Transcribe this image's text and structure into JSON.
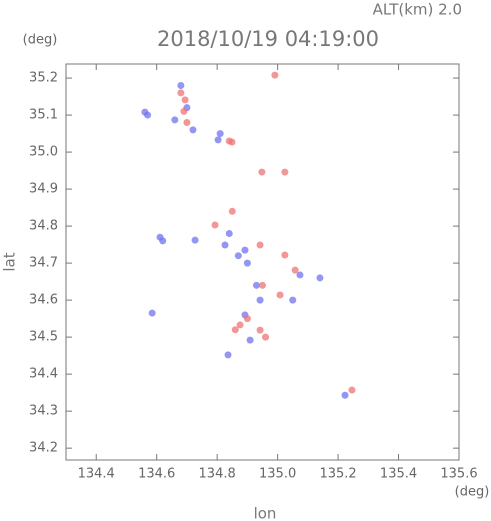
{
  "chart_data": {
    "type": "scatter",
    "title": "2018/10/19 04:19:00",
    "subtitle": "ALT(km) 2.0",
    "x_label": "lon",
    "y_label": "lat",
    "x_unit": "(deg)",
    "y_unit": "(deg)",
    "xlim": [
      134.3,
      135.6
    ],
    "ylim": [
      34.168,
      35.238
    ],
    "xticks": [
      134.4,
      134.6,
      134.8,
      {
        "value": 135,
        "label": "135.0"
      },
      135.2,
      135.4,
      135.6
    ],
    "yticks": [
      34.2,
      34.3,
      34.4,
      34.5,
      34.6,
      34.7,
      34.8,
      34.9,
      {
        "value": 35,
        "label": "35.0"
      },
      35.1,
      35.2
    ],
    "series": [
      {
        "color": "#6f73ee",
        "x": [
          134.561,
          134.57,
          134.68,
          134.7,
          134.66,
          134.803,
          134.81,
          134.611,
          134.62,
          134.727,
          134.826,
          134.84,
          134.892,
          134.9,
          135.074,
          135.14,
          134.942,
          134.892,
          134.909,
          134.836,
          134.585,
          135.223,
          134.72,
          134.87,
          134.93,
          135.05
        ],
        "y": [
          35.108,
          35.1,
          35.18,
          35.12,
          35.087,
          35.033,
          35.05,
          34.77,
          34.76,
          34.762,
          34.749,
          34.78,
          34.735,
          34.7,
          34.668,
          34.66,
          34.6,
          34.56,
          34.492,
          34.452,
          34.565,
          34.343,
          35.06,
          34.72,
          34.64,
          34.6
        ]
      },
      {
        "color": "#ee7373",
        "x": [
          134.694,
          134.68,
          134.7,
          134.849,
          134.84,
          134.991,
          134.948,
          135.024,
          134.793,
          134.942,
          135.024,
          135.058,
          135.008,
          134.876,
          134.942,
          134.86,
          135.246,
          134.69,
          134.95,
          134.9,
          134.85,
          134.96
        ],
        "y": [
          35.141,
          35.16,
          35.08,
          35.027,
          35.03,
          35.208,
          34.946,
          34.946,
          34.803,
          34.749,
          34.722,
          34.681,
          34.614,
          34.533,
          34.519,
          34.52,
          34.357,
          35.11,
          34.64,
          34.55,
          34.84,
          34.5
        ]
      }
    ]
  }
}
